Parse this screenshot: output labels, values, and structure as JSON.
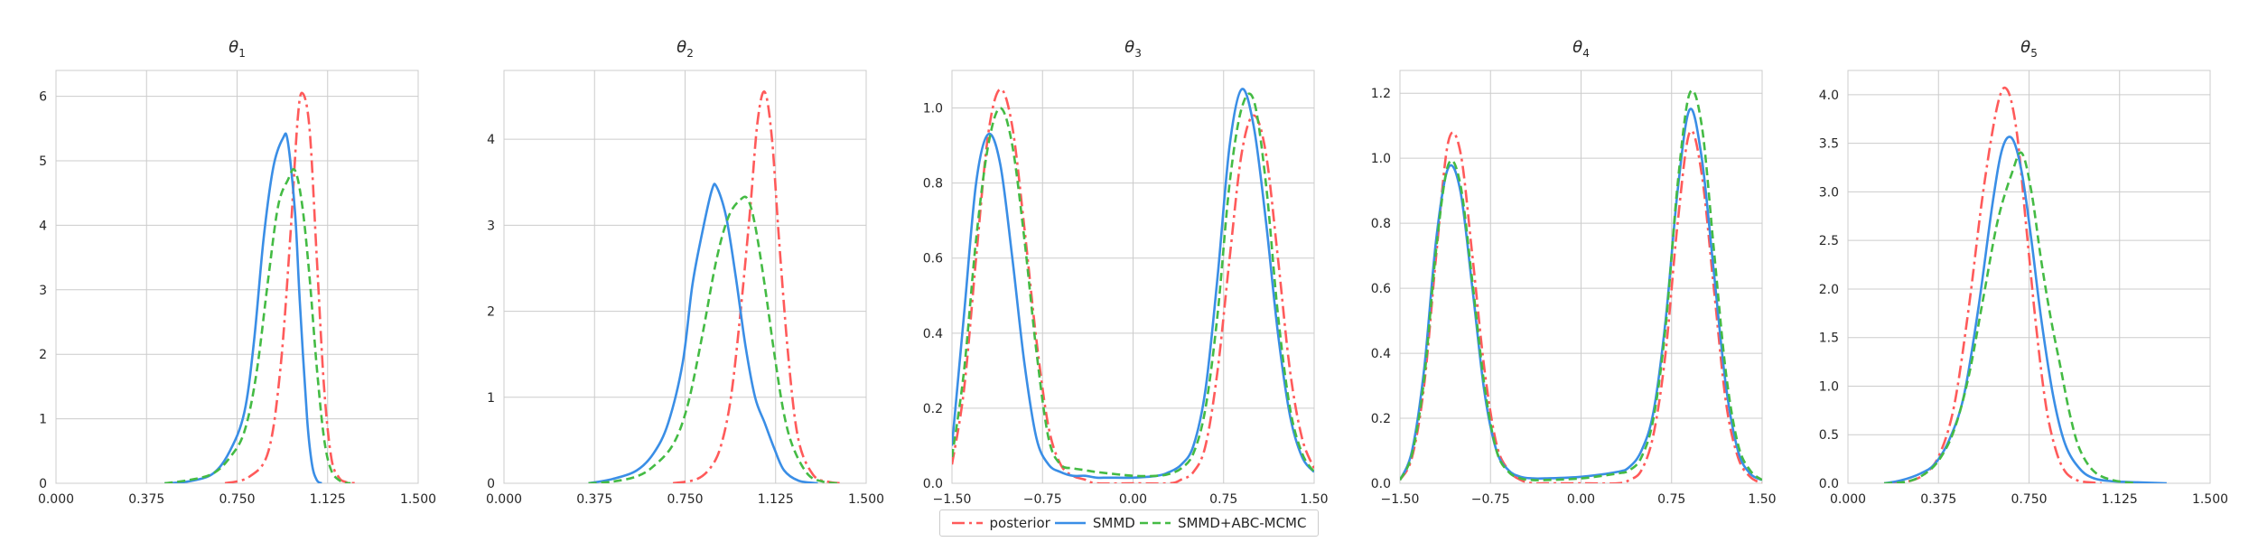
{
  "chart_data": [
    {
      "type": "line",
      "title": "θ",
      "title_sub": "1",
      "xlim": [
        0,
        1.5
      ],
      "ylim": [
        0,
        6.4
      ],
      "xticks": [
        "0.000",
        "0.375",
        "0.750",
        "1.125",
        "1.500"
      ],
      "xtick_values": [
        0,
        0.375,
        0.75,
        1.125,
        1.5
      ],
      "yticks": [
        "0",
        "1",
        "2",
        "3",
        "4",
        "5",
        "6"
      ],
      "ytick_values": [
        0,
        1,
        2,
        3,
        4,
        5,
        6
      ],
      "grid": true,
      "series": [
        {
          "name": "posterior",
          "x": [
            0.7,
            0.8,
            0.88,
            0.93,
            0.97,
            1.0,
            1.02,
            1.05,
            1.08,
            1.11,
            1.14,
            1.17,
            1.2,
            1.25
          ],
          "y": [
            0.0,
            0.1,
            0.5,
            1.8,
            3.8,
            5.6,
            6.05,
            5.5,
            3.5,
            1.5,
            0.4,
            0.1,
            0.02,
            0.0
          ]
        },
        {
          "name": "SMMD",
          "x": [
            0.45,
            0.55,
            0.65,
            0.72,
            0.78,
            0.82,
            0.86,
            0.9,
            0.94,
            0.96,
            0.99,
            1.01,
            1.04,
            1.06,
            1.08,
            1.1
          ],
          "y": [
            0.0,
            0.03,
            0.15,
            0.5,
            1.1,
            2.2,
            3.8,
            4.9,
            5.35,
            5.3,
            4.2,
            2.8,
            1.0,
            0.3,
            0.05,
            0.0
          ]
        },
        {
          "name": "SMMD+ABC-MCMC",
          "x": [
            0.45,
            0.55,
            0.65,
            0.72,
            0.78,
            0.83,
            0.88,
            0.92,
            0.96,
            0.99,
            1.02,
            1.05,
            1.08,
            1.11,
            1.14,
            1.18,
            1.22
          ],
          "y": [
            0.0,
            0.05,
            0.15,
            0.4,
            0.8,
            1.7,
            3.2,
            4.3,
            4.7,
            4.85,
            4.3,
            3.2,
            1.8,
            0.7,
            0.2,
            0.03,
            0.0
          ]
        }
      ]
    },
    {
      "type": "line",
      "title": "θ",
      "title_sub": "2",
      "xlim": [
        0,
        1.5
      ],
      "ylim": [
        0,
        4.8
      ],
      "xticks": [
        "0.000",
        "0.375",
        "0.750",
        "1.125",
        "1.500"
      ],
      "xtick_values": [
        0,
        0.375,
        0.75,
        1.125,
        1.5
      ],
      "yticks": [
        "0",
        "1",
        "2",
        "3",
        "4"
      ],
      "ytick_values": [
        0,
        1,
        2,
        3,
        4
      ],
      "grid": true,
      "series": [
        {
          "name": "posterior",
          "x": [
            0.7,
            0.8,
            0.86,
            0.9,
            0.94,
            0.98,
            1.02,
            1.05,
            1.08,
            1.11,
            1.14,
            1.18,
            1.22,
            1.28,
            1.34,
            1.4
          ],
          "y": [
            0.0,
            0.05,
            0.2,
            0.45,
            1.0,
            2.0,
            3.2,
            4.2,
            4.55,
            4.0,
            2.8,
            1.4,
            0.5,
            0.1,
            0.02,
            0.0
          ]
        },
        {
          "name": "SMMD",
          "x": [
            0.35,
            0.45,
            0.55,
            0.62,
            0.68,
            0.74,
            0.78,
            0.82,
            0.86,
            0.88,
            0.92,
            0.96,
            1.0,
            1.04,
            1.08,
            1.12,
            1.16,
            1.22,
            1.3
          ],
          "y": [
            0.0,
            0.05,
            0.15,
            0.35,
            0.7,
            1.4,
            2.3,
            2.9,
            3.4,
            3.45,
            3.1,
            2.4,
            1.6,
            1.0,
            0.7,
            0.4,
            0.15,
            0.03,
            0.0
          ]
        },
        {
          "name": "SMMD+ABC-MCMC",
          "x": [
            0.35,
            0.45,
            0.55,
            0.62,
            0.7,
            0.76,
            0.82,
            0.88,
            0.93,
            0.98,
            1.01,
            1.04,
            1.08,
            1.12,
            1.16,
            1.2,
            1.26,
            1.32,
            1.38
          ],
          "y": [
            0.0,
            0.02,
            0.08,
            0.2,
            0.45,
            0.9,
            1.7,
            2.6,
            3.1,
            3.3,
            3.3,
            3.0,
            2.3,
            1.5,
            0.8,
            0.4,
            0.1,
            0.02,
            0.0
          ]
        }
      ]
    },
    {
      "type": "line",
      "title": "θ",
      "title_sub": "3",
      "xlim": [
        -1.5,
        1.5
      ],
      "ylim": [
        0,
        1.1
      ],
      "xticks": [
        "−1.50",
        "−0.75",
        "0.00",
        "0.75",
        "1.50"
      ],
      "xtick_values": [
        -1.5,
        -0.75,
        0,
        0.75,
        1.5
      ],
      "yticks": [
        "0.0",
        "0.2",
        "0.4",
        "0.6",
        "0.8",
        "1.0"
      ],
      "ytick_values": [
        0,
        0.2,
        0.4,
        0.6,
        0.8,
        1.0
      ],
      "grid": true,
      "series": [
        {
          "name": "posterior",
          "x": [
            -1.5,
            -1.4,
            -1.3,
            -1.2,
            -1.1,
            -1.0,
            -0.9,
            -0.8,
            -0.7,
            -0.6,
            -0.5,
            -0.4,
            -0.3,
            0.0,
            0.3,
            0.4,
            0.5,
            0.6,
            0.7,
            0.8,
            0.9,
            1.0,
            1.1,
            1.2,
            1.3,
            1.4,
            1.5
          ],
          "y": [
            0.05,
            0.25,
            0.6,
            0.93,
            1.05,
            0.95,
            0.68,
            0.38,
            0.15,
            0.05,
            0.02,
            0.01,
            0.0,
            0.0,
            0.0,
            0.01,
            0.03,
            0.1,
            0.3,
            0.6,
            0.88,
            0.98,
            0.88,
            0.6,
            0.3,
            0.12,
            0.04
          ]
        },
        {
          "name": "SMMD",
          "x": [
            -1.5,
            -1.4,
            -1.3,
            -1.2,
            -1.1,
            -1.0,
            -0.9,
            -0.8,
            -0.7,
            -0.6,
            -0.5,
            -0.4,
            -0.3,
            -0.2,
            0.0,
            0.2,
            0.3,
            0.4,
            0.5,
            0.6,
            0.7,
            0.8,
            0.9,
            1.0,
            1.1,
            1.2,
            1.3,
            1.4,
            1.5
          ],
          "y": [
            0.1,
            0.45,
            0.8,
            0.93,
            0.85,
            0.6,
            0.32,
            0.12,
            0.05,
            0.03,
            0.02,
            0.02,
            0.015,
            0.015,
            0.015,
            0.02,
            0.03,
            0.05,
            0.1,
            0.25,
            0.55,
            0.9,
            1.05,
            0.95,
            0.7,
            0.4,
            0.18,
            0.07,
            0.03
          ]
        },
        {
          "name": "SMMD+ABC-MCMC",
          "x": [
            -1.5,
            -1.4,
            -1.3,
            -1.2,
            -1.1,
            -1.0,
            -0.9,
            -0.8,
            -0.7,
            -0.6,
            -0.5,
            -0.4,
            -0.3,
            0.0,
            0.2,
            0.3,
            0.4,
            0.5,
            0.6,
            0.7,
            0.8,
            0.9,
            1.0,
            1.1,
            1.2,
            1.3,
            1.4,
            1.5
          ],
          "y": [
            0.07,
            0.3,
            0.65,
            0.9,
            1.0,
            0.9,
            0.65,
            0.35,
            0.12,
            0.05,
            0.04,
            0.035,
            0.03,
            0.02,
            0.02,
            0.025,
            0.04,
            0.08,
            0.2,
            0.45,
            0.8,
            1.0,
            1.02,
            0.8,
            0.45,
            0.2,
            0.08,
            0.03
          ]
        }
      ]
    },
    {
      "type": "line",
      "title": "θ",
      "title_sub": "4",
      "xlim": [
        -1.5,
        1.5
      ],
      "ylim": [
        0,
        1.27
      ],
      "xticks": [
        "−1.50",
        "−0.75",
        "0.00",
        "0.75",
        "1.50"
      ],
      "xtick_values": [
        -1.5,
        -0.75,
        0,
        0.75,
        1.5
      ],
      "yticks": [
        "0.0",
        "0.2",
        "0.4",
        "0.6",
        "0.8",
        "1.0",
        "1.2"
      ],
      "ytick_values": [
        0,
        0.2,
        0.4,
        0.6,
        0.8,
        1.0,
        1.2
      ],
      "grid": true,
      "series": [
        {
          "name": "posterior",
          "x": [
            -1.5,
            -1.4,
            -1.3,
            -1.2,
            -1.1,
            -1.0,
            -0.9,
            -0.8,
            -0.7,
            -0.6,
            -0.5,
            -0.4,
            -0.3,
            0.0,
            0.3,
            0.4,
            0.5,
            0.6,
            0.7,
            0.8,
            0.9,
            1.0,
            1.1,
            1.2,
            1.3,
            1.4,
            1.5
          ],
          "y": [
            0.01,
            0.08,
            0.3,
            0.7,
            1.05,
            1.02,
            0.7,
            0.35,
            0.12,
            0.04,
            0.01,
            0.0,
            0.0,
            0.0,
            0.0,
            0.01,
            0.04,
            0.15,
            0.4,
            0.8,
            1.08,
            0.95,
            0.6,
            0.25,
            0.08,
            0.02,
            0.0
          ]
        },
        {
          "name": "SMMD",
          "x": [
            -1.5,
            -1.4,
            -1.3,
            -1.2,
            -1.1,
            -1.0,
            -0.9,
            -0.8,
            -0.7,
            -0.6,
            -0.5,
            -0.4,
            -0.3,
            0.0,
            0.3,
            0.4,
            0.5,
            0.6,
            0.7,
            0.8,
            0.9,
            1.0,
            1.1,
            1.2,
            1.3,
            1.4,
            1.5
          ],
          "y": [
            0.01,
            0.1,
            0.35,
            0.75,
            0.97,
            0.9,
            0.6,
            0.28,
            0.1,
            0.04,
            0.02,
            0.015,
            0.015,
            0.02,
            0.035,
            0.05,
            0.1,
            0.22,
            0.5,
            0.9,
            1.15,
            1.0,
            0.65,
            0.3,
            0.1,
            0.03,
            0.01
          ]
        },
        {
          "name": "SMMD+ABC-MCMC",
          "x": [
            -1.5,
            -1.4,
            -1.3,
            -1.2,
            -1.1,
            -1.0,
            -0.9,
            -0.8,
            -0.7,
            -0.6,
            -0.5,
            -0.4,
            -0.3,
            0.0,
            0.3,
            0.4,
            0.5,
            0.6,
            0.7,
            0.8,
            0.9,
            1.0,
            1.1,
            1.2,
            1.3,
            1.4,
            1.5
          ],
          "y": [
            0.01,
            0.09,
            0.32,
            0.72,
            0.98,
            0.92,
            0.62,
            0.3,
            0.1,
            0.035,
            0.015,
            0.01,
            0.01,
            0.015,
            0.03,
            0.04,
            0.08,
            0.2,
            0.48,
            0.92,
            1.2,
            1.1,
            0.72,
            0.34,
            0.12,
            0.04,
            0.01
          ]
        }
      ]
    },
    {
      "type": "line",
      "title": "θ",
      "title_sub": "5",
      "xlim": [
        0,
        1.5
      ],
      "ylim": [
        0,
        4.25
      ],
      "xticks": [
        "0.000",
        "0.375",
        "0.750",
        "1.125",
        "1.500"
      ],
      "xtick_values": [
        0,
        0.375,
        0.75,
        1.125,
        1.5
      ],
      "yticks": [
        "0.0",
        "0.5",
        "1.0",
        "1.5",
        "2.0",
        "2.5",
        "3.0",
        "3.5",
        "4.0"
      ],
      "ytick_values": [
        0,
        0.5,
        1.0,
        1.5,
        2.0,
        2.5,
        3.0,
        3.5,
        4.0
      ],
      "grid": true,
      "series": [
        {
          "name": "posterior",
          "x": [
            0.15,
            0.25,
            0.32,
            0.38,
            0.44,
            0.5,
            0.56,
            0.62,
            0.66,
            0.7,
            0.74,
            0.78,
            0.82,
            0.86,
            0.9,
            0.95,
            1.0,
            1.05
          ],
          "y": [
            0.0,
            0.02,
            0.1,
            0.3,
            0.8,
            1.8,
            3.0,
            3.9,
            4.05,
            3.6,
            2.6,
            1.6,
            0.8,
            0.35,
            0.12,
            0.03,
            0.01,
            0.0
          ]
        },
        {
          "name": "SMMD",
          "x": [
            0.15,
            0.22,
            0.3,
            0.36,
            0.42,
            0.48,
            0.54,
            0.6,
            0.64,
            0.68,
            0.72,
            0.76,
            0.8,
            0.85,
            0.9,
            0.96,
            1.02,
            1.1,
            1.2,
            1.32
          ],
          "y": [
            0.0,
            0.03,
            0.1,
            0.2,
            0.45,
            0.9,
            1.8,
            2.9,
            3.45,
            3.55,
            3.2,
            2.5,
            1.7,
            0.9,
            0.4,
            0.15,
            0.05,
            0.02,
            0.01,
            0.0
          ]
        },
        {
          "name": "SMMD+ABC-MCMC",
          "x": [
            0.15,
            0.25,
            0.32,
            0.38,
            0.44,
            0.5,
            0.56,
            0.62,
            0.68,
            0.72,
            0.76,
            0.8,
            0.84,
            0.88,
            0.92,
            0.96,
            1.02,
            1.1,
            1.2
          ],
          "y": [
            0.0,
            0.02,
            0.1,
            0.25,
            0.55,
            1.1,
            1.9,
            2.7,
            3.2,
            3.4,
            3.0,
            2.3,
            1.7,
            1.2,
            0.7,
            0.35,
            0.12,
            0.03,
            0.0
          ]
        }
      ]
    }
  ],
  "legend": {
    "items": [
      {
        "label": "posterior",
        "color": "#ff5a5a",
        "dash": "14,5,3,5"
      },
      {
        "label": "SMMD",
        "color": "#3a8ee6",
        "dash": ""
      },
      {
        "label": "SMMD+ABC-MCMC",
        "color": "#44bb44",
        "dash": "9,5"
      }
    ]
  }
}
